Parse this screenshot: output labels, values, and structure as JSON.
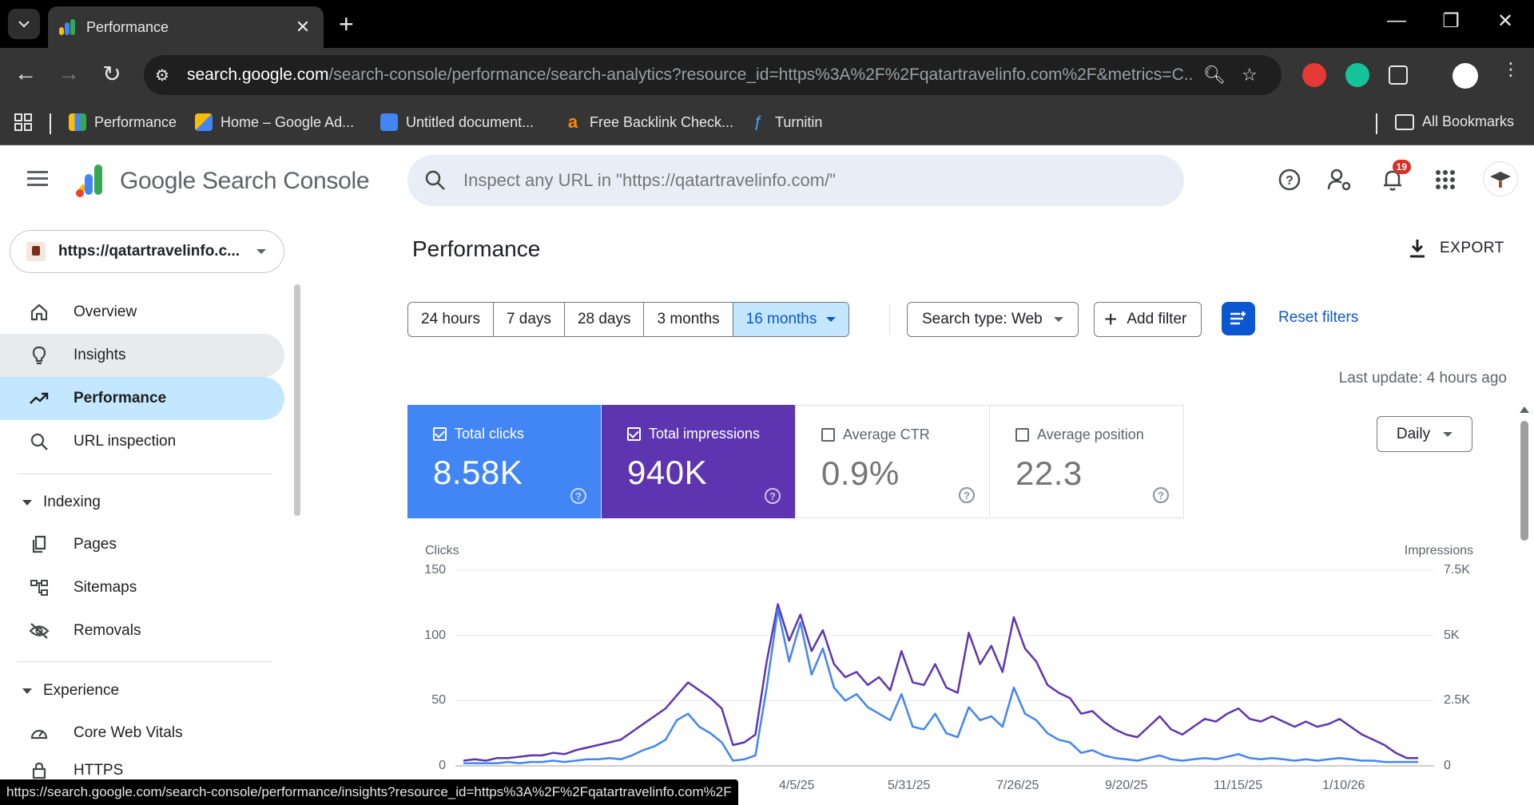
{
  "browser": {
    "tab_title": "Performance",
    "url_host": "search.google.com",
    "url_path": "/search-console/performance/search-analytics?resource_id=https%3A%2F%2Fqatartravelinfo.com%2F&metrics=C...",
    "bookmarks": [
      {
        "label": "Performance"
      },
      {
        "label": "Home – Google Ad..."
      },
      {
        "label": "Untitled document..."
      },
      {
        "label": "Free Backlink Check..."
      },
      {
        "label": "Turnitin"
      }
    ],
    "all_bookmarks": "All Bookmarks",
    "status_url": "https://search.google.com/search-console/performance/insights?resource_id=https%3A%2F%2Fqatartravelinfo.com%2F"
  },
  "header": {
    "product_name": "Google Search Console",
    "search_placeholder": "Inspect any URL in \"https://qatartravelinfo.com/\"",
    "notification_count": "19"
  },
  "sidebar": {
    "property": "https://qatartravelinfo.c...",
    "items": [
      {
        "label": "Overview",
        "icon": "home-icon"
      },
      {
        "label": "Insights",
        "icon": "lightbulb-icon"
      },
      {
        "label": "Performance",
        "icon": "trending-up-icon"
      },
      {
        "label": "URL inspection",
        "icon": "search-icon"
      }
    ],
    "indexing_label": "Indexing",
    "indexing_items": [
      {
        "label": "Pages",
        "icon": "pages-icon"
      },
      {
        "label": "Sitemaps",
        "icon": "sitemap-icon"
      },
      {
        "label": "Removals",
        "icon": "eye-off-icon"
      }
    ],
    "experience_label": "Experience",
    "experience_items": [
      {
        "label": "Core Web Vitals",
        "icon": "gauge-icon"
      },
      {
        "label": "HTTPS",
        "icon": "lock-icon"
      }
    ]
  },
  "main": {
    "title": "Performance",
    "export_label": "EXPORT",
    "date_ranges": [
      "24 hours",
      "7 days",
      "28 days",
      "3 months",
      "16 months"
    ],
    "selected_range": "16 months",
    "search_type": "Search type: Web",
    "add_filter": "Add filter",
    "reset_filters": "Reset filters",
    "last_update": "Last update: 4 hours ago",
    "granularity": "Daily",
    "metrics": [
      {
        "label": "Total clicks",
        "value": "8.58K",
        "checked": true,
        "color": "#4285f4"
      },
      {
        "label": "Total impressions",
        "value": "940K",
        "checked": true,
        "color": "#5e35b1"
      },
      {
        "label": "Average CTR",
        "value": "0.9%",
        "checked": false
      },
      {
        "label": "Average position",
        "value": "22.3",
        "checked": false
      }
    ]
  },
  "chart_data": {
    "type": "line",
    "y_left_label": "Clicks",
    "y_right_label": "Impressions",
    "y_left_ticks": [
      "150",
      "100",
      "50",
      "0"
    ],
    "y_right_ticks": [
      "7.5K",
      "5K",
      "2.5K",
      "0"
    ],
    "ylim_left": [
      0,
      150
    ],
    "ylim_right": [
      0,
      7500
    ],
    "x_ticks": [
      "4/5/25",
      "5/31/25",
      "7/26/25",
      "9/20/25",
      "11/15/25",
      "1/10/26"
    ],
    "series": [
      {
        "name": "Clicks",
        "color": "#4285f4",
        "values": [
          2,
          2,
          2,
          2,
          3,
          2,
          3,
          3,
          4,
          3,
          4,
          5,
          5,
          6,
          5,
          8,
          12,
          15,
          20,
          35,
          40,
          30,
          25,
          18,
          4,
          5,
          8,
          60,
          120,
          80,
          110,
          70,
          90,
          60,
          50,
          55,
          45,
          40,
          35,
          55,
          30,
          28,
          40,
          25,
          22,
          45,
          35,
          38,
          30,
          60,
          40,
          35,
          25,
          20,
          18,
          10,
          12,
          8,
          6,
          5,
          4,
          6,
          8,
          5,
          4,
          5,
          6,
          5,
          7,
          9,
          6,
          5,
          6,
          5,
          4,
          5,
          4,
          5,
          6,
          5,
          4,
          4,
          3,
          3,
          3,
          3
        ]
      },
      {
        "name": "Impressions",
        "color": "#5e35b1",
        "values": [
          200,
          250,
          200,
          300,
          300,
          350,
          400,
          400,
          500,
          450,
          600,
          700,
          800,
          900,
          1000,
          1300,
          1600,
          1900,
          2200,
          2700,
          3200,
          2900,
          2600,
          2200,
          800,
          900,
          1200,
          4000,
          6200,
          4800,
          5800,
          4400,
          5200,
          3900,
          3400,
          3600,
          3100,
          3400,
          2900,
          4400,
          3200,
          3100,
          3900,
          3000,
          2800,
          5100,
          3900,
          4600,
          3600,
          5700,
          4500,
          4000,
          3100,
          2800,
          2600,
          2000,
          2100,
          1700,
          1400,
          1200,
          1100,
          1500,
          1900,
          1400,
          1200,
          1500,
          1800,
          1700,
          2000,
          2200,
          1800,
          1700,
          1900,
          1700,
          1500,
          1700,
          1500,
          1600,
          1800,
          1500,
          1200,
          1000,
          800,
          500,
          300,
          300
        ]
      }
    ]
  }
}
